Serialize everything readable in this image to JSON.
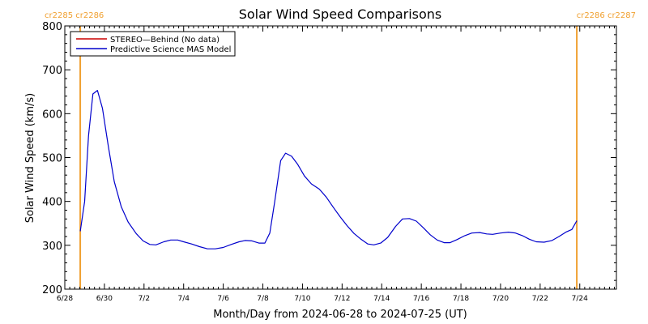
{
  "chart_data": {
    "type": "line",
    "title": "Solar Wind Speed Comparisons",
    "xlabel": "Month/Day from 2024-06-28 to 2024-07-25 (UT)",
    "ylabel": "Solar Wind Speed (km/s)",
    "ylim": [
      200,
      800
    ],
    "yticks": [
      200,
      300,
      400,
      500,
      600,
      700,
      800
    ],
    "xlim_days": [
      0,
      27.85
    ],
    "xticks": [
      {
        "day": 0,
        "label": "6/28"
      },
      {
        "day": 2,
        "label": "6/30"
      },
      {
        "day": 4,
        "label": "7/2"
      },
      {
        "day": 6,
        "label": "7/4"
      },
      {
        "day": 8,
        "label": "7/6"
      },
      {
        "day": 10,
        "label": "7/8"
      },
      {
        "day": 12,
        "label": "7/10"
      },
      {
        "day": 14,
        "label": "7/12"
      },
      {
        "day": 16,
        "label": "7/14"
      },
      {
        "day": 18,
        "label": "7/16"
      },
      {
        "day": 20,
        "label": "7/18"
      },
      {
        "day": 22,
        "label": "7/20"
      },
      {
        "day": 24,
        "label": "7/22"
      },
      {
        "day": 26,
        "label": "7/24"
      }
    ],
    "legend_position": "top-left",
    "series": [
      {
        "name": "STEREO—Behind (No data)",
        "color": "#cc0000",
        "points": []
      },
      {
        "name": "Predictive Science MAS Model",
        "color": "#0000cc",
        "points": [
          [
            0.78,
            332
          ],
          [
            1.0,
            400
          ],
          [
            1.2,
            550
          ],
          [
            1.42,
            645
          ],
          [
            1.65,
            653
          ],
          [
            1.9,
            612
          ],
          [
            2.2,
            525
          ],
          [
            2.5,
            445
          ],
          [
            2.85,
            388
          ],
          [
            3.2,
            353
          ],
          [
            3.6,
            327
          ],
          [
            3.95,
            310
          ],
          [
            4.3,
            302
          ],
          [
            4.6,
            301
          ],
          [
            5.0,
            308
          ],
          [
            5.35,
            312
          ],
          [
            5.7,
            312
          ],
          [
            6.0,
            308
          ],
          [
            6.4,
            303
          ],
          [
            6.8,
            297
          ],
          [
            7.2,
            292
          ],
          [
            7.6,
            292
          ],
          [
            8.0,
            295
          ],
          [
            8.4,
            302
          ],
          [
            8.8,
            308
          ],
          [
            9.1,
            311
          ],
          [
            9.45,
            310
          ],
          [
            9.8,
            305
          ],
          [
            10.1,
            305
          ],
          [
            10.35,
            328
          ],
          [
            10.6,
            400
          ],
          [
            10.9,
            493
          ],
          [
            11.15,
            510
          ],
          [
            11.45,
            503
          ],
          [
            11.75,
            485
          ],
          [
            12.1,
            458
          ],
          [
            12.45,
            440
          ],
          [
            12.85,
            428
          ],
          [
            13.2,
            410
          ],
          [
            13.55,
            387
          ],
          [
            13.9,
            365
          ],
          [
            14.25,
            345
          ],
          [
            14.6,
            327
          ],
          [
            14.95,
            314
          ],
          [
            15.3,
            303
          ],
          [
            15.6,
            301
          ],
          [
            15.95,
            305
          ],
          [
            16.3,
            318
          ],
          [
            16.7,
            343
          ],
          [
            17.05,
            360
          ],
          [
            17.4,
            361
          ],
          [
            17.75,
            355
          ],
          [
            18.1,
            340
          ],
          [
            18.45,
            324
          ],
          [
            18.8,
            312
          ],
          [
            19.15,
            306
          ],
          [
            19.45,
            306
          ],
          [
            19.8,
            313
          ],
          [
            20.2,
            322
          ],
          [
            20.55,
            328
          ],
          [
            20.95,
            329
          ],
          [
            21.3,
            326
          ],
          [
            21.6,
            325
          ],
          [
            22.0,
            328
          ],
          [
            22.4,
            330
          ],
          [
            22.75,
            328
          ],
          [
            23.1,
            322
          ],
          [
            23.45,
            314
          ],
          [
            23.8,
            308
          ],
          [
            24.2,
            307
          ],
          [
            24.6,
            311
          ],
          [
            24.95,
            320
          ],
          [
            25.3,
            330
          ],
          [
            25.6,
            336
          ],
          [
            25.85,
            356
          ]
        ]
      }
    ],
    "markers": [
      {
        "day": 0.78,
        "color": "#f0a030",
        "label": "cr2285 cr2286",
        "side": "left"
      },
      {
        "day": 25.85,
        "color": "#f0a030",
        "label": "cr2286 cr2287",
        "side": "right"
      }
    ]
  }
}
